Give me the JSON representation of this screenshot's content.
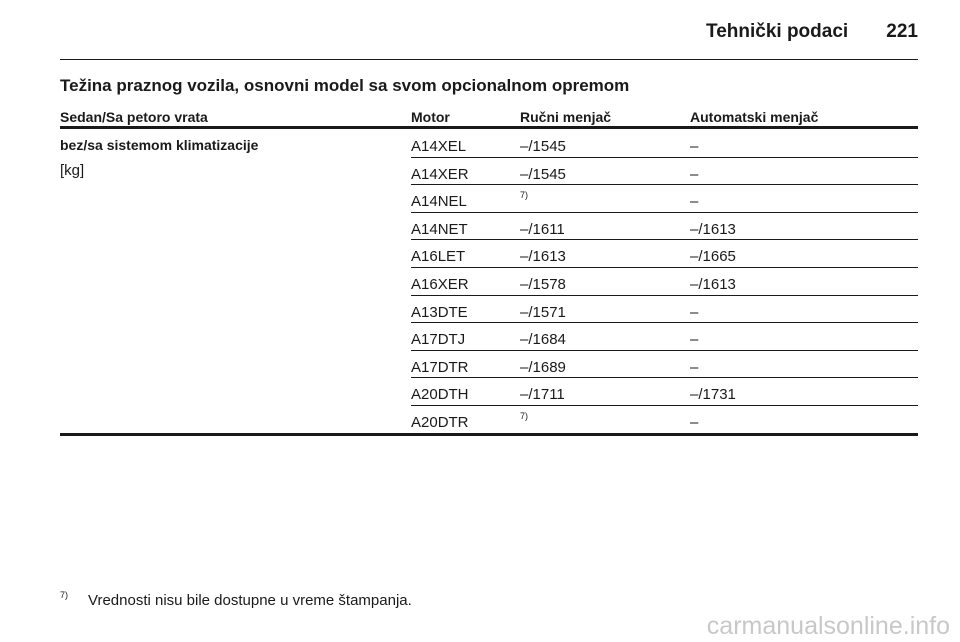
{
  "header": {
    "title": "Tehnički podaci",
    "page_number": "221"
  },
  "section_title": "Težina praznog vozila, osnovni model sa svom opcionalnom opremom",
  "table": {
    "columns": [
      "Sedan/Sa petoro vrata",
      "Motor",
      "Ručni menjač",
      "Automatski menjač"
    ],
    "row_label": "bez/sa sistemom klimatizacije",
    "unit": "[kg]",
    "rows": [
      [
        "A14XEL",
        "–/1545",
        "–"
      ],
      [
        "A14XER",
        "–/1545",
        "–"
      ],
      [
        "A14NEL",
        "7)",
        "–"
      ],
      [
        "A14NET",
        "–/1611",
        "–/1613"
      ],
      [
        "A16LET",
        "–/1613",
        "–/1665"
      ],
      [
        "A16XER",
        "–/1578",
        "–/1613"
      ],
      [
        "A13DTE",
        "–/1571",
        "–"
      ],
      [
        "A17DTJ",
        "–/1684",
        "–"
      ],
      [
        "A17DTR",
        "–/1689",
        "–"
      ],
      [
        "A20DTH",
        "–/1711",
        "–/1731"
      ],
      [
        "A20DTR",
        "7)",
        "–"
      ]
    ]
  },
  "footnote": {
    "marker": "7)",
    "text": "Vrednosti nisu bile dostupne u vreme štampanja."
  },
  "watermark": "carmanualsonline.info"
}
